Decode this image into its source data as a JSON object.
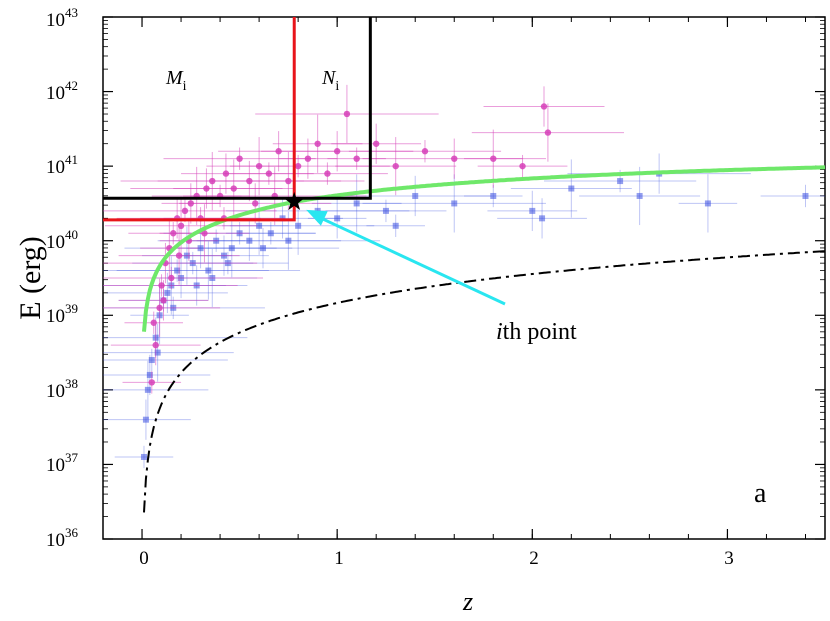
{
  "chart_data": {
    "type": "scatter",
    "title": "",
    "xlabel": "z",
    "ylabel": "E (erg)",
    "xlim": [
      -0.2,
      3.5
    ],
    "ylim_log10": [
      36,
      43
    ],
    "yscale": "log",
    "x_ticks": [
      "0",
      "1",
      "2",
      "3"
    ],
    "x_tick_values": [
      0,
      1,
      2,
      3
    ],
    "y_ticks": [
      {
        "base": "10",
        "exp": "36",
        "value": 36
      },
      {
        "base": "10",
        "exp": "37",
        "value": 37
      },
      {
        "base": "10",
        "exp": "38",
        "value": 38
      },
      {
        "base": "10",
        "exp": "39",
        "value": 39
      },
      {
        "base": "10",
        "exp": "40",
        "value": 40
      },
      {
        "base": "10",
        "exp": "41",
        "value": 41
      },
      {
        "base": "10",
        "exp": "42",
        "value": 42
      },
      {
        "base": "10",
        "exp": "43",
        "value": 43
      }
    ],
    "panel_label": "a",
    "colors": {
      "magenta_points": "#d63fb8",
      "blue_points": "#3b4fe0",
      "red_box": "#e8141a",
      "black_box": "#000000",
      "green_curve": "#6fe86a",
      "cyan_arrow": "#29e6f0"
    },
    "ith_point": {
      "z": 0.78,
      "logE": 40.52
    },
    "region_labels": {
      "M": "M",
      "M_sub": "i",
      "N": "N",
      "N_sub": "i"
    },
    "arrow_label": {
      "italic": "i",
      "rest": "th point"
    },
    "curves": {
      "green_threshold": "logE = 40.52 + 1.6*log10(z/0.78), rising, flattening to ~41.08 at z=3.5",
      "dashdot": "logE ~ 39.86 at z=3.5, steeply dropping toward z=0"
    },
    "magenta_series": [
      {
        "z": 0.05,
        "logE": 38.1
      },
      {
        "z": 0.07,
        "logE": 38.6
      },
      {
        "z": 0.09,
        "logE": 39.1
      },
      {
        "z": 0.1,
        "logE": 39.4
      },
      {
        "z": 0.12,
        "logE": 39.7
      },
      {
        "z": 0.14,
        "logE": 39.9
      },
      {
        "z": 0.16,
        "logE": 40.1
      },
      {
        "z": 0.18,
        "logE": 40.3
      },
      {
        "z": 0.2,
        "logE": 40.2
      },
      {
        "z": 0.22,
        "logE": 40.4
      },
      {
        "z": 0.25,
        "logE": 40.5
      },
      {
        "z": 0.28,
        "logE": 40.6
      },
      {
        "z": 0.3,
        "logE": 40.3
      },
      {
        "z": 0.33,
        "logE": 40.7
      },
      {
        "z": 0.36,
        "logE": 40.8
      },
      {
        "z": 0.4,
        "logE": 40.6
      },
      {
        "z": 0.43,
        "logE": 40.9
      },
      {
        "z": 0.47,
        "logE": 40.7
      },
      {
        "z": 0.5,
        "logE": 41.1
      },
      {
        "z": 0.55,
        "logE": 40.8
      },
      {
        "z": 0.6,
        "logE": 41.0
      },
      {
        "z": 0.65,
        "logE": 40.9
      },
      {
        "z": 0.7,
        "logE": 41.2
      },
      {
        "z": 0.75,
        "logE": 40.8
      },
      {
        "z": 0.8,
        "logE": 41.0
      },
      {
        "z": 0.85,
        "logE": 41.1
      },
      {
        "z": 0.9,
        "logE": 41.3
      },
      {
        "z": 0.95,
        "logE": 40.9
      },
      {
        "z": 1.0,
        "logE": 41.2
      },
      {
        "z": 1.05,
        "logE": 41.7
      },
      {
        "z": 1.1,
        "logE": 41.1
      },
      {
        "z": 1.2,
        "logE": 41.3
      },
      {
        "z": 1.3,
        "logE": 41.0
      },
      {
        "z": 1.45,
        "logE": 41.2
      },
      {
        "z": 1.6,
        "logE": 41.1
      },
      {
        "z": 1.8,
        "logE": 41.1
      },
      {
        "z": 1.95,
        "logE": 41.0
      },
      {
        "z": 2.06,
        "logE": 41.8
      },
      {
        "z": 2.08,
        "logE": 41.45
      },
      {
        "z": 0.15,
        "logE": 39.5
      },
      {
        "z": 0.24,
        "logE": 40.0
      },
      {
        "z": 0.32,
        "logE": 40.1
      },
      {
        "z": 0.42,
        "logE": 40.3
      },
      {
        "z": 0.58,
        "logE": 40.5
      },
      {
        "z": 0.68,
        "logE": 40.6
      },
      {
        "z": 0.06,
        "logE": 38.9
      },
      {
        "z": 0.11,
        "logE": 39.2
      },
      {
        "z": 0.19,
        "logE": 39.8
      }
    ],
    "blue_series": [
      {
        "z": 0.01,
        "logE": 37.1
      },
      {
        "z": 0.02,
        "logE": 37.6
      },
      {
        "z": 0.03,
        "logE": 38.0
      },
      {
        "z": 0.05,
        "logE": 38.4
      },
      {
        "z": 0.07,
        "logE": 38.7
      },
      {
        "z": 0.09,
        "logE": 39.0
      },
      {
        "z": 0.11,
        "logE": 39.2
      },
      {
        "z": 0.13,
        "logE": 39.3
      },
      {
        "z": 0.15,
        "logE": 39.4
      },
      {
        "z": 0.18,
        "logE": 39.6
      },
      {
        "z": 0.2,
        "logE": 39.5
      },
      {
        "z": 0.23,
        "logE": 39.8
      },
      {
        "z": 0.26,
        "logE": 39.7
      },
      {
        "z": 0.3,
        "logE": 39.9
      },
      {
        "z": 0.34,
        "logE": 39.6
      },
      {
        "z": 0.38,
        "logE": 40.0
      },
      {
        "z": 0.42,
        "logE": 39.8
      },
      {
        "z": 0.46,
        "logE": 39.9
      },
      {
        "z": 0.5,
        "logE": 40.1
      },
      {
        "z": 0.55,
        "logE": 40.0
      },
      {
        "z": 0.6,
        "logE": 40.2
      },
      {
        "z": 0.66,
        "logE": 40.1
      },
      {
        "z": 0.72,
        "logE": 40.3
      },
      {
        "z": 0.8,
        "logE": 40.2
      },
      {
        "z": 0.9,
        "logE": 40.4
      },
      {
        "z": 1.0,
        "logE": 40.3
      },
      {
        "z": 1.1,
        "logE": 40.5
      },
      {
        "z": 1.25,
        "logE": 40.4
      },
      {
        "z": 1.4,
        "logE": 40.6
      },
      {
        "z": 1.6,
        "logE": 40.5
      },
      {
        "z": 1.8,
        "logE": 40.6
      },
      {
        "z": 2.0,
        "logE": 40.4
      },
      {
        "z": 2.2,
        "logE": 40.7
      },
      {
        "z": 2.45,
        "logE": 40.8
      },
      {
        "z": 2.65,
        "logE": 40.9
      },
      {
        "z": 2.9,
        "logE": 40.5
      },
      {
        "z": 3.4,
        "logE": 40.6
      },
      {
        "z": 0.04,
        "logE": 38.2
      },
      {
        "z": 0.08,
        "logE": 38.5
      },
      {
        "z": 0.16,
        "logE": 39.1
      },
      {
        "z": 0.28,
        "logE": 39.4
      },
      {
        "z": 0.36,
        "logE": 39.5
      },
      {
        "z": 0.44,
        "logE": 39.7
      },
      {
        "z": 0.62,
        "logE": 39.9
      },
      {
        "z": 0.75,
        "logE": 40.0
      },
      {
        "z": 1.3,
        "logE": 40.2
      },
      {
        "z": 2.05,
        "logE": 40.3
      },
      {
        "z": 2.55,
        "logE": 40.6
      }
    ]
  }
}
